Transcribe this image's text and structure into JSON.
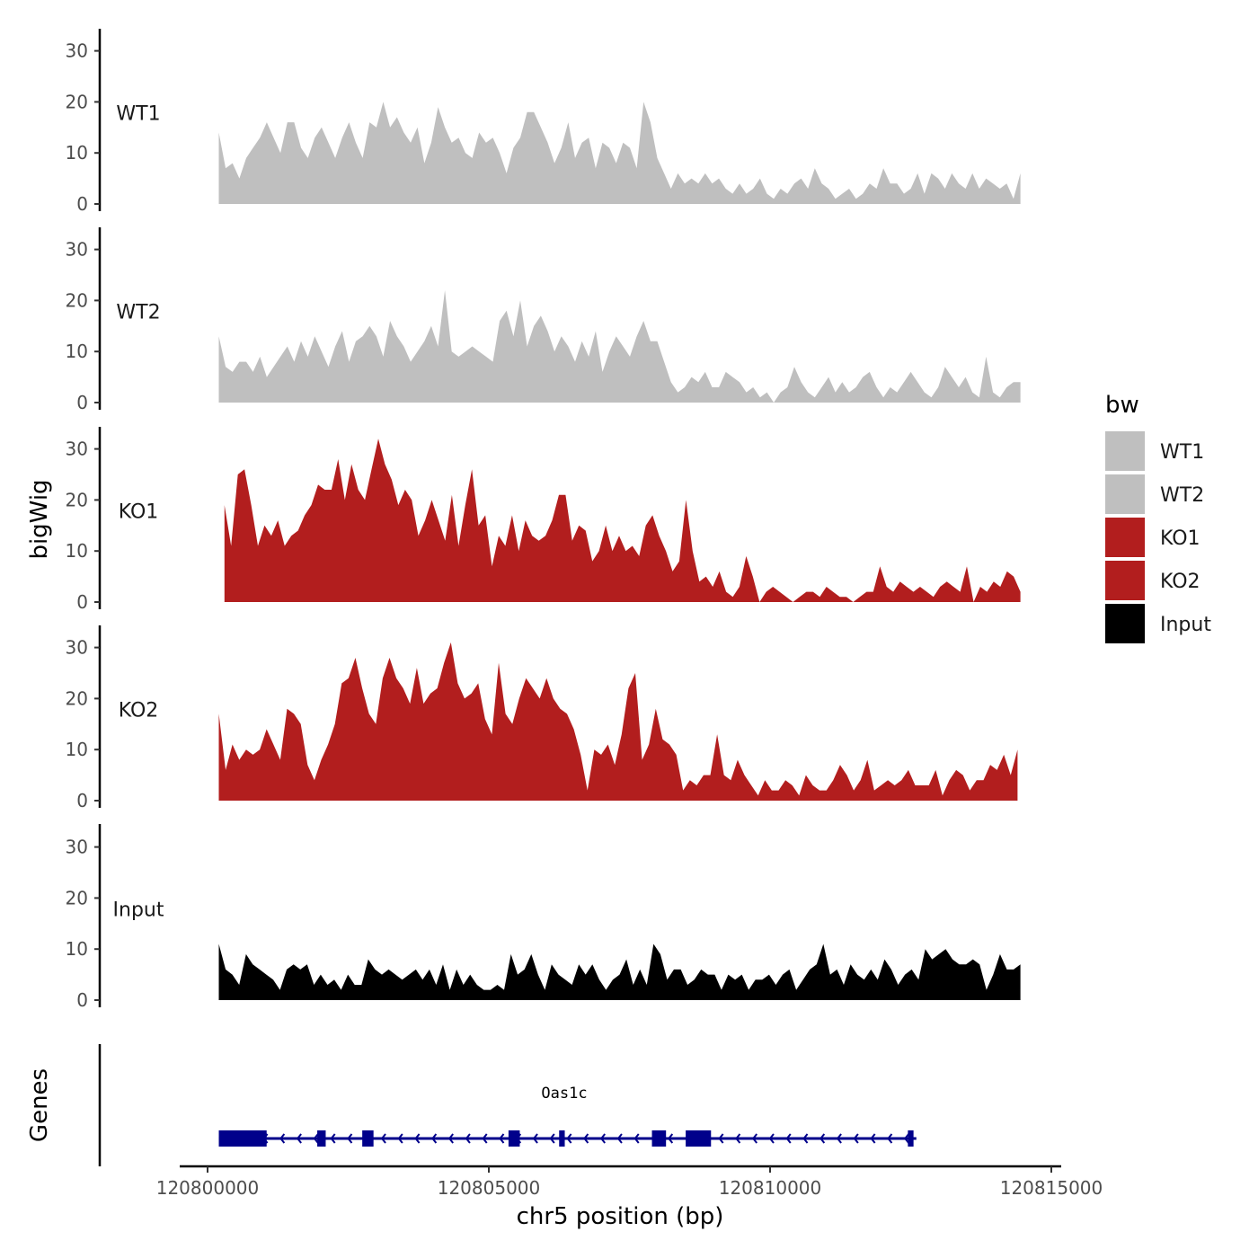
{
  "chart_data": {
    "type": "area",
    "title": "",
    "ylabel": "bigWig",
    "xlabel": "chr5 position (bp)",
    "xlim": [
      120799800,
      120815000
    ],
    "ylim": [
      0,
      34
    ],
    "y_ticks": [
      0,
      10,
      20,
      30
    ],
    "x_ticks": [
      120800000,
      120805000,
      120810000,
      120815000
    ],
    "x_tick_labels": [
      "120800000",
      "120805000",
      "120810000",
      "120815000"
    ],
    "legend": {
      "title": "bw",
      "position": "right",
      "entries": [
        {
          "label": "WT1",
          "color": "#bfbfbf"
        },
        {
          "label": "WT2",
          "color": "#bfbfbf"
        },
        {
          "label": "KO1",
          "color": "#b21e1e"
        },
        {
          "label": "KO2",
          "color": "#b21e1e"
        },
        {
          "label": "Input",
          "color": "#000000"
        }
      ]
    },
    "step_bp": 100,
    "series": [
      {
        "name": "WT1",
        "color": "#bfbfbf",
        "start": 120800200,
        "end": 120814450,
        "values": [
          14,
          7,
          8,
          5,
          9,
          11,
          13,
          16,
          13,
          10,
          16,
          16,
          11,
          9,
          13,
          15,
          12,
          9,
          13,
          16,
          12,
          9,
          16,
          15,
          20,
          15,
          17,
          14,
          12,
          15,
          8,
          12,
          19,
          15,
          12,
          13,
          10,
          9,
          14,
          12,
          13,
          10,
          6,
          11,
          13,
          18,
          18,
          15,
          12,
          8,
          11,
          16,
          9,
          12,
          13,
          7,
          12,
          11,
          8,
          12,
          11,
          7,
          20,
          16,
          9,
          6,
          3,
          6,
          4,
          5,
          4,
          6,
          4,
          5,
          3,
          2,
          4,
          2,
          3,
          5,
          2,
          1,
          3,
          2,
          4,
          5,
          3,
          7,
          4,
          3,
          1,
          2,
          3,
          1,
          2,
          4,
          3,
          7,
          4,
          4,
          2,
          3,
          6,
          2,
          6,
          5,
          3,
          6,
          4,
          3,
          6,
          3,
          5,
          4,
          3,
          4,
          1,
          6
        ]
      },
      {
        "name": "WT2",
        "color": "#bfbfbf",
        "start": 120800200,
        "end": 120814450,
        "values": [
          13,
          7,
          6,
          8,
          8,
          6,
          9,
          5,
          7,
          9,
          11,
          8,
          12,
          9,
          13,
          10,
          7,
          11,
          14,
          8,
          12,
          13,
          15,
          13,
          9,
          16,
          13,
          11,
          8,
          10,
          12,
          15,
          11,
          22,
          10,
          9,
          10,
          11,
          10,
          9,
          8,
          16,
          18,
          13,
          20,
          11,
          15,
          17,
          14,
          10,
          13,
          11,
          8,
          12,
          9,
          14,
          6,
          10,
          13,
          11,
          9,
          13,
          16,
          12,
          12,
          8,
          4,
          2,
          3,
          5,
          4,
          6,
          3,
          3,
          6,
          5,
          4,
          2,
          3,
          1,
          2,
          0,
          2,
          3,
          7,
          4,
          2,
          1,
          3,
          5,
          2,
          4,
          2,
          3,
          5,
          6,
          3,
          1,
          3,
          2,
          4,
          6,
          4,
          2,
          1,
          3,
          7,
          5,
          3,
          5,
          2,
          1,
          9,
          2,
          1,
          3,
          4,
          4
        ]
      },
      {
        "name": "KO1",
        "color": "#b21e1e",
        "start": 120800300,
        "end": 120814450,
        "values": [
          19,
          11,
          25,
          26,
          19,
          11,
          15,
          13,
          16,
          11,
          13,
          14,
          17,
          19,
          23,
          22,
          22,
          28,
          20,
          27,
          22,
          20,
          26,
          32,
          27,
          24,
          19,
          22,
          20,
          13,
          16,
          20,
          16,
          12,
          21,
          11,
          19,
          26,
          15,
          17,
          7,
          13,
          11,
          17,
          10,
          16,
          13,
          12,
          13,
          16,
          21,
          21,
          12,
          15,
          14,
          8,
          10,
          15,
          10,
          13,
          10,
          11,
          9,
          15,
          17,
          13,
          10,
          6,
          8,
          20,
          10,
          4,
          5,
          3,
          6,
          2,
          1,
          3,
          9,
          5,
          0,
          2,
          3,
          2,
          1,
          0,
          1,
          2,
          2,
          1,
          3,
          2,
          1,
          1,
          0,
          1,
          2,
          2,
          7,
          3,
          2,
          4,
          3,
          2,
          3,
          2,
          1,
          3,
          4,
          3,
          2,
          7,
          0,
          3,
          2,
          4,
          3,
          6,
          5,
          2
        ]
      },
      {
        "name": "KO2",
        "color": "#b21e1e",
        "start": 120800200,
        "end": 120814400,
        "values": [
          17,
          6,
          11,
          8,
          10,
          9,
          10,
          14,
          11,
          8,
          18,
          17,
          15,
          7,
          4,
          8,
          11,
          15,
          23,
          24,
          28,
          22,
          17,
          15,
          24,
          28,
          24,
          22,
          19,
          26,
          19,
          21,
          22,
          27,
          31,
          23,
          20,
          21,
          23,
          16,
          13,
          27,
          17,
          15,
          20,
          24,
          22,
          20,
          24,
          20,
          18,
          17,
          14,
          9,
          2,
          10,
          9,
          11,
          7,
          13,
          22,
          25,
          8,
          11,
          18,
          12,
          11,
          9,
          2,
          4,
          3,
          5,
          5,
          13,
          5,
          4,
          8,
          5,
          3,
          1,
          4,
          2,
          2,
          4,
          3,
          1,
          5,
          3,
          2,
          2,
          4,
          7,
          5,
          2,
          4,
          8,
          2,
          3,
          4,
          3,
          4,
          6,
          3,
          3,
          3,
          6,
          1,
          4,
          6,
          5,
          2,
          4,
          4,
          7,
          6,
          9,
          5,
          10
        ]
      },
      {
        "name": "Input",
        "color": "#000000",
        "start": 120800200,
        "end": 120814450,
        "values": [
          11,
          6,
          5,
          3,
          9,
          7,
          6,
          5,
          4,
          2,
          6,
          7,
          6,
          7,
          3,
          5,
          3,
          4,
          2,
          5,
          3,
          3,
          8,
          6,
          5,
          6,
          5,
          4,
          5,
          6,
          4,
          6,
          3,
          7,
          2,
          6,
          3,
          5,
          3,
          2,
          2,
          3,
          2,
          9,
          5,
          6,
          9,
          5,
          2,
          7,
          5,
          4,
          3,
          7,
          5,
          7,
          4,
          2,
          4,
          5,
          8,
          3,
          6,
          3,
          11,
          9,
          4,
          6,
          6,
          3,
          4,
          6,
          5,
          5,
          2,
          5,
          4,
          5,
          2,
          4,
          4,
          5,
          3,
          5,
          6,
          2,
          4,
          6,
          7,
          11,
          5,
          6,
          3,
          7,
          5,
          4,
          6,
          4,
          8,
          6,
          3,
          5,
          6,
          4,
          10,
          8,
          9,
          10,
          8,
          7,
          7,
          8,
          7,
          2,
          5,
          9,
          6,
          6,
          7
        ]
      }
    ],
    "gene_track": {
      "label": "Genes",
      "gene_name": "Oas1c",
      "color": "#00008b",
      "strand": "-",
      "start": 120800200,
      "end": 120812600,
      "exons": [
        [
          120800200,
          120801050
        ],
        [
          120801950,
          120802100
        ],
        [
          120802750,
          120802950
        ],
        [
          120805350,
          120805550
        ],
        [
          120806250,
          120806350
        ],
        [
          120807900,
          120808150
        ],
        [
          120808500,
          120808950
        ],
        [
          120812450,
          120812550
        ]
      ]
    }
  }
}
